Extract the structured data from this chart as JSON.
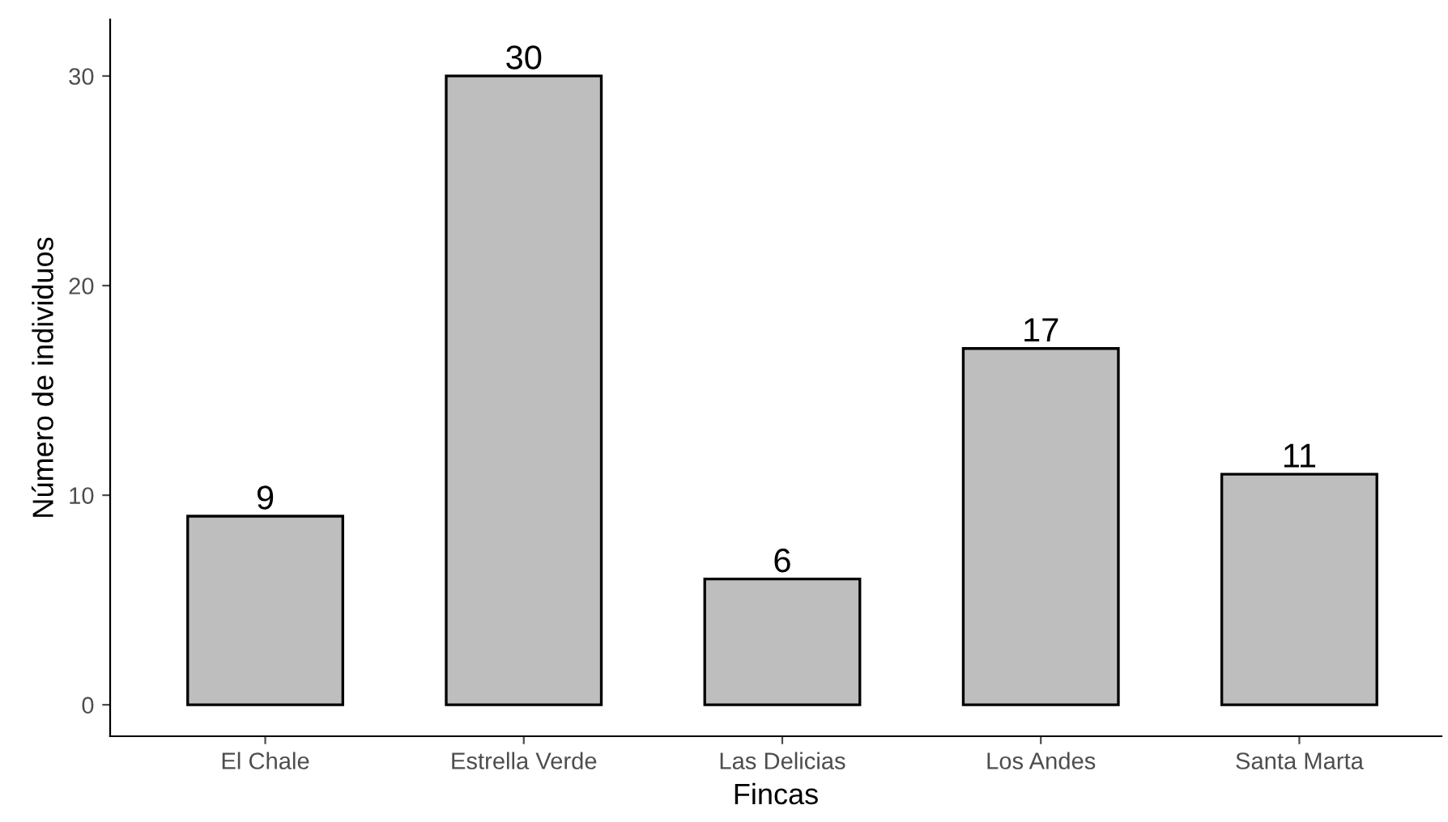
{
  "chart_data": {
    "type": "bar",
    "xlabel": "Fincas",
    "ylabel": "Número de individuos",
    "categories": [
      "El Chale",
      "Estrella Verde",
      "Las Delicias",
      "Los Andes",
      "Santa Marta"
    ],
    "values": [
      9,
      30,
      6,
      17,
      11
    ],
    "color": "#bebebe",
    "ylim": [
      -1.5,
      32.7
    ],
    "yticks": [
      0,
      10,
      20,
      30
    ],
    "grid": false,
    "data_labels": true
  }
}
